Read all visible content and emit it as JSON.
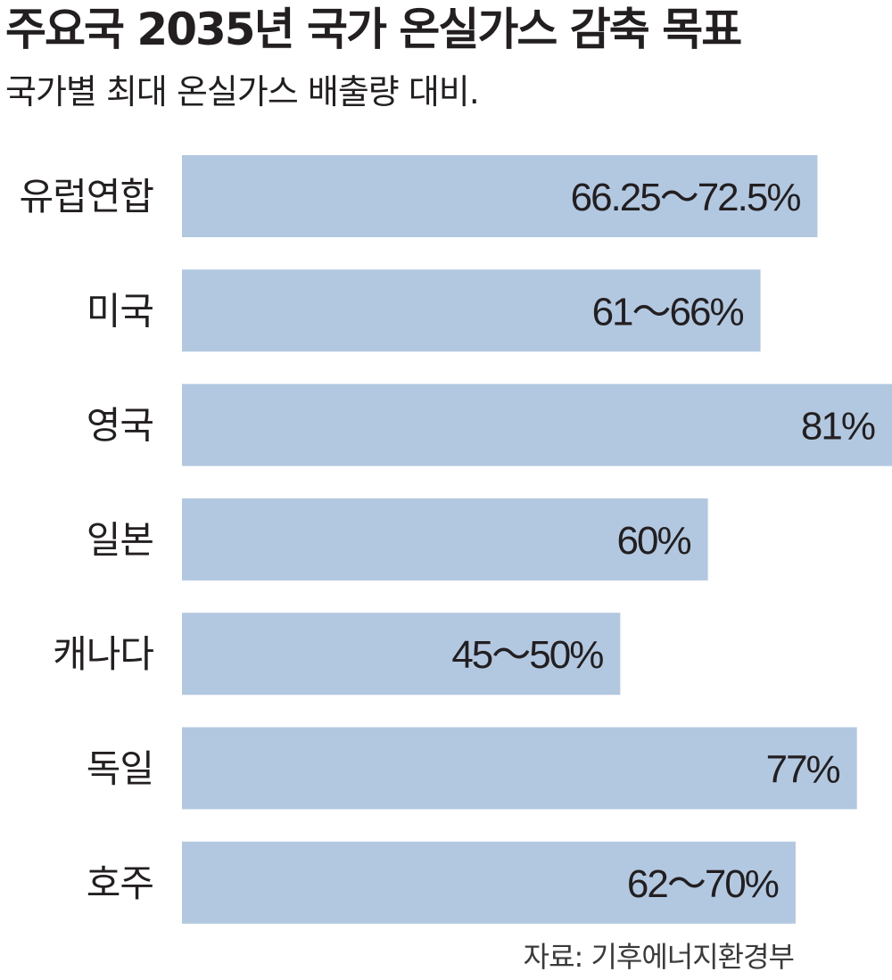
{
  "header": {
    "title": "주요국 2035년 국가 온실가스 감축 목표",
    "subtitle": "국가별 최대 온실가스 배출량 대비."
  },
  "footer": {
    "source": "자료: 기후에너지환경부"
  },
  "chart_data": {
    "type": "bar",
    "orientation": "horizontal",
    "categories": [
      "유럽연합",
      "미국",
      "영국",
      "일본",
      "캐나다",
      "독일",
      "호주"
    ],
    "values": [
      72.5,
      66,
      81,
      60,
      50,
      77,
      70
    ],
    "value_labels": [
      "66.25～72.5%",
      "61～66%",
      "81%",
      "60%",
      "45～50%",
      "77%",
      "62～70%"
    ],
    "xlim": [
      0,
      81
    ],
    "bar_color": "#b1c8e0",
    "grid": false,
    "legend": "none"
  }
}
